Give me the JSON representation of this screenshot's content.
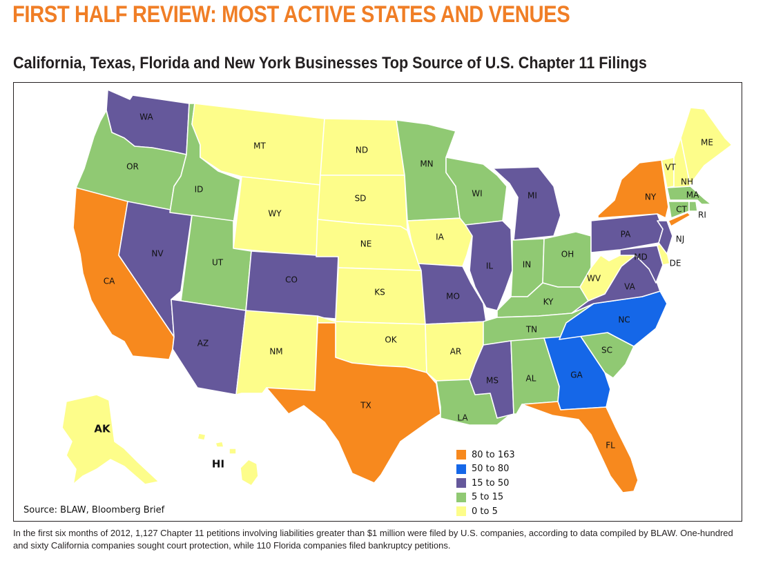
{
  "headline": "FIRST HALF REVIEW: MOST ACTIVE STATES AND VENUES",
  "subheadline": "California, Texas, Florida and New York Businesses Top Source of U.S. Chapter 11 Filings",
  "source": "Source: BLAW, Bloomberg Brief",
  "caption": "In the first six months of 2012, 1,127 Chapter 11 petitions involving liabilities greater than $1 million were filed by U.S. companies, according to data compiled by BLAW. One-hundred and sixty California companies sought court protection, while 110 Florida companies filed bankruptcy petitions.",
  "legend": [
    {
      "key": "orange",
      "label": "80 to 163",
      "color": "#f7891e"
    },
    {
      "key": "blue",
      "label": "50 to 80",
      "color": "#1567e8"
    },
    {
      "key": "purple",
      "label": "15 to 50",
      "color": "#65589b"
    },
    {
      "key": "green",
      "label": "5 to 15",
      "color": "#90c973"
    },
    {
      "key": "yellow",
      "label": "0 to 5",
      "color": "#fdfd8a"
    }
  ],
  "states": {
    "WA": "purple",
    "OR": "green",
    "CA": "orange",
    "NV": "purple",
    "ID": "green",
    "MT": "yellow",
    "WY": "yellow",
    "UT": "green",
    "AZ": "purple",
    "CO": "purple",
    "NM": "yellow",
    "ND": "yellow",
    "SD": "yellow",
    "NE": "yellow",
    "KS": "yellow",
    "OK": "yellow",
    "TX": "orange",
    "MN": "green",
    "IA": "yellow",
    "MO": "purple",
    "AR": "yellow",
    "LA": "green",
    "WI": "green",
    "IL": "purple",
    "MI": "purple",
    "IN": "green",
    "OH": "green",
    "KY": "green",
    "TN": "green",
    "MS": "purple",
    "AL": "green",
    "GA": "blue",
    "FL": "orange",
    "SC": "green",
    "NC": "blue",
    "VA": "purple",
    "WV": "yellow",
    "PA": "purple",
    "NY": "orange",
    "NJ": "purple",
    "DE": "yellow",
    "MD": "purple",
    "CT": "green",
    "RI": "green",
    "MA": "green",
    "VT": "yellow",
    "NH": "yellow",
    "ME": "yellow",
    "AK": "yellow",
    "HI": "yellow"
  }
}
